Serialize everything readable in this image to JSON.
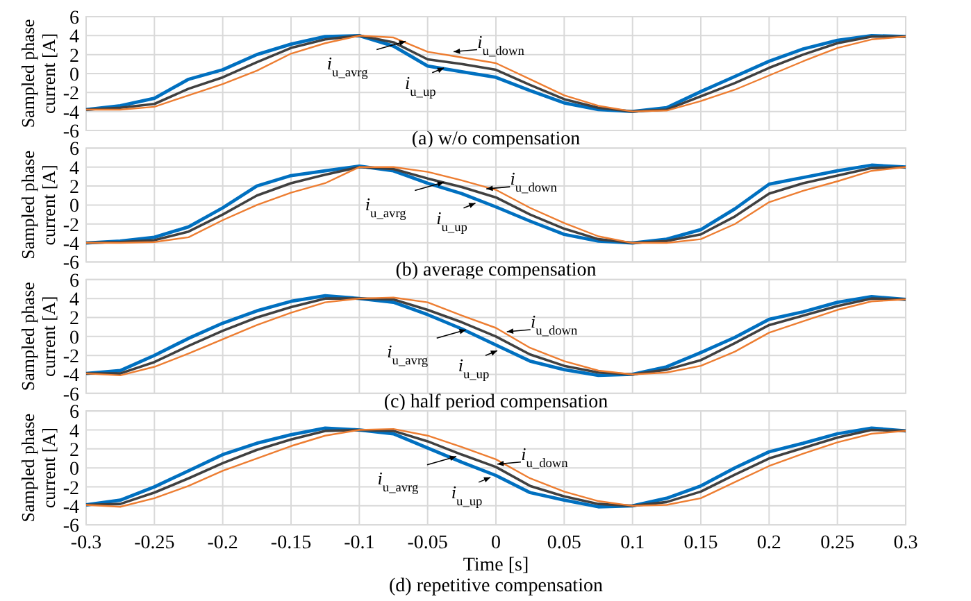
{
  "chart_data": [
    {
      "type": "line",
      "title": "(a) w/o compensation",
      "ylabel": "Sampled phase current [A]",
      "grid": true,
      "tick_labels": "y",
      "xlim": [
        -0.3,
        0.3
      ],
      "xticks": [
        -0.3,
        -0.25,
        -0.2,
        -0.15,
        -0.1,
        -0.05,
        0,
        0.05,
        0.1,
        0.15,
        0.2,
        0.25,
        0.3
      ],
      "ylim": [
        -6,
        6
      ],
      "yticks": [
        -6,
        -4,
        -2,
        0,
        2,
        4,
        6
      ],
      "x": [
        -0.3,
        -0.275,
        -0.25,
        -0.225,
        -0.2,
        -0.175,
        -0.15,
        -0.125,
        -0.1,
        -0.075,
        -0.05,
        -0.025,
        0,
        0.025,
        0.05,
        0.075,
        0.1,
        0.125,
        0.15,
        0.175,
        0.2,
        0.225,
        0.25,
        0.275,
        0.3
      ],
      "series": [
        {
          "color": "#0070c0",
          "values": [
            -3.8,
            -3.4,
            -2.6,
            -0.6,
            0.4,
            2.0,
            3.1,
            3.9,
            4.0,
            2.9,
            0.8,
            0.2,
            -0.4,
            -1.8,
            -3.1,
            -3.8,
            -4.0,
            -3.6,
            -1.9,
            -0.3,
            1.3,
            2.6,
            3.5,
            4.0,
            3.9
          ]
        },
        {
          "color": "#404040",
          "values": [
            -3.8,
            -3.6,
            -3.2,
            -1.6,
            -0.4,
            1.2,
            2.7,
            3.6,
            4.0,
            3.3,
            1.5,
            1.0,
            0.4,
            -1.2,
            -2.7,
            -3.6,
            -4.0,
            -3.8,
            -2.4,
            -1.0,
            0.6,
            2.0,
            3.2,
            3.9,
            3.9
          ]
        },
        {
          "color": "#ed7d31",
          "values": [
            -3.8,
            -3.8,
            -3.5,
            -2.3,
            -1.1,
            0.3,
            2.1,
            3.2,
            4.0,
            3.8,
            2.3,
            1.7,
            1.1,
            -0.6,
            -2.3,
            -3.4,
            -4.0,
            -3.9,
            -2.9,
            -1.7,
            -0.2,
            1.3,
            2.7,
            3.6,
            3.9
          ]
        }
      ],
      "annotations": [
        {
          "text": "i$_{u_avrg}$",
          "x": -0.066,
          "y": 3.4
        },
        {
          "text": "i$_{u_up}$",
          "x": -0.038,
          "y": 0.6
        },
        {
          "text": "i$_{u_down}$",
          "x": -0.031,
          "y": 2.3
        }
      ]
    },
    {
      "type": "line",
      "title": "(b) average compensation",
      "ylabel": "Sampled phase current [A]",
      "grid": true,
      "tick_labels": "y",
      "xlim": [
        -0.3,
        0.3
      ],
      "xticks": [
        -0.3,
        -0.25,
        -0.2,
        -0.15,
        -0.1,
        -0.05,
        0,
        0.05,
        0.1,
        0.15,
        0.2,
        0.25,
        0.3
      ],
      "ylim": [
        -6,
        6
      ],
      "yticks": [
        -6,
        -4,
        -2,
        0,
        2,
        4,
        6
      ],
      "x": [
        -0.3,
        -0.275,
        -0.25,
        -0.225,
        -0.2,
        -0.175,
        -0.15,
        -0.125,
        -0.1,
        -0.075,
        -0.05,
        -0.025,
        0,
        0.025,
        0.05,
        0.075,
        0.1,
        0.125,
        0.15,
        0.175,
        0.2,
        0.225,
        0.25,
        0.275,
        0.3
      ],
      "series": [
        {
          "color": "#0070c0",
          "values": [
            -4.0,
            -3.8,
            -3.4,
            -2.3,
            -0.3,
            2.0,
            3.1,
            3.6,
            4.1,
            3.6,
            2.3,
            1.2,
            -0.2,
            -1.7,
            -3.1,
            -3.8,
            -4.0,
            -3.6,
            -2.6,
            -0.4,
            2.2,
            2.9,
            3.6,
            4.2,
            4.0
          ]
        },
        {
          "color": "#404040",
          "values": [
            -4.0,
            -3.9,
            -3.7,
            -2.8,
            -1.0,
            1.0,
            2.3,
            3.2,
            4.0,
            3.8,
            2.8,
            1.9,
            0.8,
            -1.0,
            -2.5,
            -3.6,
            -4.0,
            -3.8,
            -3.1,
            -1.2,
            1.2,
            2.3,
            3.1,
            3.9,
            4.0
          ]
        },
        {
          "color": "#ed7d31",
          "values": [
            -4.0,
            -4.0,
            -3.9,
            -3.4,
            -1.6,
            0.0,
            1.3,
            2.3,
            4.0,
            4.0,
            3.5,
            2.6,
            1.6,
            -0.3,
            -1.9,
            -3.3,
            -4.0,
            -4.0,
            -3.6,
            -2.0,
            0.3,
            1.5,
            2.5,
            3.6,
            4.0
          ]
        }
      ],
      "annotations": [
        {
          "text": "i$_{u_avrg}$",
          "x": -0.038,
          "y": 2.4
        },
        {
          "text": "i$_{u_up}$",
          "x": -0.015,
          "y": 0.2
        },
        {
          "text": "i$_{u_down}$",
          "x": -0.007,
          "y": 1.7
        }
      ]
    },
    {
      "type": "line",
      "title": "(c) half period compensation",
      "ylabel": "Sampled phase current [A]",
      "grid": true,
      "tick_labels": "y",
      "xlim": [
        -0.3,
        0.3
      ],
      "xticks": [
        -0.3,
        -0.25,
        -0.2,
        -0.15,
        -0.1,
        -0.05,
        0,
        0.05,
        0.1,
        0.15,
        0.2,
        0.25,
        0.3
      ],
      "ylim": [
        -6,
        6
      ],
      "yticks": [
        -6,
        -4,
        -2,
        0,
        2,
        4,
        6
      ],
      "x": [
        -0.3,
        -0.275,
        -0.25,
        -0.225,
        -0.2,
        -0.175,
        -0.15,
        -0.125,
        -0.1,
        -0.075,
        -0.05,
        -0.025,
        0,
        0.025,
        0.05,
        0.075,
        0.1,
        0.125,
        0.15,
        0.175,
        0.2,
        0.225,
        0.25,
        0.275,
        0.3
      ],
      "series": [
        {
          "color": "#0070c0",
          "values": [
            -3.9,
            -3.6,
            -2.0,
            -0.2,
            1.4,
            2.7,
            3.7,
            4.3,
            4.0,
            3.6,
            2.3,
            0.8,
            -0.9,
            -2.6,
            -3.5,
            -4.1,
            -4.0,
            -3.2,
            -1.7,
            -0.1,
            1.8,
            2.6,
            3.6,
            4.2,
            3.9
          ]
        },
        {
          "color": "#404040",
          "values": [
            -3.9,
            -3.9,
            -2.7,
            -1.0,
            0.6,
            2.0,
            3.1,
            4.0,
            4.0,
            3.9,
            2.8,
            1.5,
            0.0,
            -1.9,
            -3.1,
            -3.8,
            -4.0,
            -3.5,
            -2.5,
            -0.7,
            1.2,
            2.2,
            3.2,
            4.0,
            3.9
          ]
        },
        {
          "color": "#ed7d31",
          "values": [
            -3.9,
            -4.1,
            -3.2,
            -1.8,
            -0.3,
            1.2,
            2.5,
            3.6,
            4.0,
            4.1,
            3.6,
            2.2,
            0.9,
            -1.2,
            -2.6,
            -3.6,
            -4.0,
            -3.8,
            -3.1,
            -1.6,
            0.4,
            1.6,
            2.8,
            3.7,
            3.9
          ]
        }
      ],
      "annotations": [
        {
          "text": "i$_{u_avrg}$",
          "x": -0.022,
          "y": 0.7
        },
        {
          "text": "i$_{u_up}$",
          "x": 0.001,
          "y": -1.5
        },
        {
          "text": "i$_{u_down}$",
          "x": 0.008,
          "y": 0.5
        }
      ]
    },
    {
      "type": "line",
      "title": "(d) repetitive compensation",
      "xlabel": "Time [s]",
      "ylabel": "Sampled phase current [A]",
      "grid": true,
      "xlim": [
        -0.3,
        0.3
      ],
      "xticks": [
        -0.3,
        -0.25,
        -0.2,
        -0.15,
        -0.1,
        -0.05,
        0,
        0.05,
        0.1,
        0.15,
        0.2,
        0.25,
        0.3
      ],
      "ylim": [
        -6,
        6
      ],
      "yticks": [
        -6,
        -4,
        -2,
        0,
        2,
        4,
        6
      ],
      "x": [
        -0.3,
        -0.275,
        -0.25,
        -0.225,
        -0.2,
        -0.175,
        -0.15,
        -0.125,
        -0.1,
        -0.075,
        -0.05,
        -0.025,
        0,
        0.025,
        0.05,
        0.075,
        0.1,
        0.125,
        0.15,
        0.175,
        0.2,
        0.225,
        0.25,
        0.275,
        0.3
      ],
      "series": [
        {
          "color": "#0070c0",
          "values": [
            -3.9,
            -3.4,
            -2.0,
            -0.3,
            1.4,
            2.6,
            3.5,
            4.2,
            4.0,
            3.6,
            2.1,
            0.6,
            -0.8,
            -2.6,
            -3.4,
            -4.1,
            -4.0,
            -3.2,
            -1.9,
            0.0,
            1.7,
            2.6,
            3.6,
            4.2,
            3.9
          ]
        },
        {
          "color": "#404040",
          "values": [
            -3.9,
            -3.8,
            -2.6,
            -1.1,
            0.5,
            1.9,
            3.0,
            3.9,
            4.0,
            3.9,
            2.8,
            1.4,
            0.1,
            -1.9,
            -3.0,
            -3.8,
            -4.0,
            -3.6,
            -2.5,
            -0.7,
            1.0,
            2.1,
            3.2,
            4.0,
            3.9
          ]
        },
        {
          "color": "#ed7d31",
          "values": [
            -3.9,
            -4.1,
            -3.2,
            -1.9,
            -0.3,
            1.0,
            2.3,
            3.4,
            4.0,
            4.1,
            3.4,
            2.2,
            0.9,
            -1.1,
            -2.5,
            -3.5,
            -4.0,
            -3.9,
            -3.2,
            -1.5,
            0.2,
            1.5,
            2.7,
            3.6,
            3.9
          ]
        }
      ],
      "annotations": [
        {
          "text": "i$_{u_avrg}$",
          "x": -0.029,
          "y": 1.2
        },
        {
          "text": "i$_{u_up}$",
          "x": -0.004,
          "y": -1.0
        },
        {
          "text": "i$_{u_down}$",
          "x": 0.001,
          "y": 0.4
        }
      ]
    }
  ]
}
